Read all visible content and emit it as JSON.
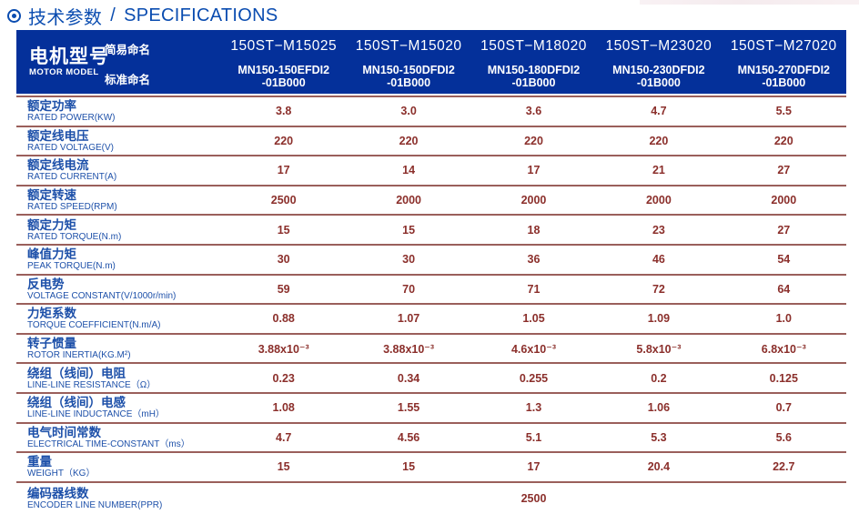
{
  "title": {
    "zh": "技术参数",
    "sep": "/",
    "en": "SPECIFICATIONS"
  },
  "colors": {
    "title_blue": "#0a4cb0",
    "header_bg": "#04309a",
    "header_text": "#ffffff",
    "label_blue": "#1d50a9",
    "value_red": "#8b2f2b",
    "line_red": "#9a5f5b",
    "page_bg": "#ffffff"
  },
  "table": {
    "header": {
      "model_label_zh": "电机型号",
      "model_label_en": "MOTOR MODEL",
      "simple_name_label": "简易命名",
      "standard_name_label": "标准命名",
      "models": [
        {
          "simple": "150ST−M15025",
          "standard_line1": "MN150-150EFDI2",
          "standard_line2": "-01B000"
        },
        {
          "simple": "150ST−M15020",
          "standard_line1": "MN150-150DFDI2",
          "standard_line2": "-01B000"
        },
        {
          "simple": "150ST−M18020",
          "standard_line1": "MN150-180DFDI2",
          "standard_line2": "-01B000"
        },
        {
          "simple": "150ST−M23020",
          "standard_line1": "MN150-230DFDI2",
          "standard_line2": "-01B000"
        },
        {
          "simple": "150ST−M27020",
          "standard_line1": "MN150-270DFDI2",
          "standard_line2": "-01B000"
        }
      ]
    },
    "rows": [
      {
        "zh": "额定功率",
        "en": "RATED POWER(KW)",
        "values": [
          "3.8",
          "3.0",
          "3.6",
          "4.7",
          "5.5"
        ]
      },
      {
        "zh": "额定线电压",
        "en": "RATED VOLTAGE(V)",
        "values": [
          "220",
          "220",
          "220",
          "220",
          "220"
        ]
      },
      {
        "zh": "额定线电流",
        "en": "RATED CURRENT(A)",
        "values": [
          "17",
          "14",
          "17",
          "21",
          "27"
        ]
      },
      {
        "zh": "额定转速",
        "en": "RATED SPEED(RPM)",
        "values": [
          "2500",
          "2000",
          "2000",
          "2000",
          "2000"
        ]
      },
      {
        "zh": "额定力矩",
        "en": "RATED TORQUE(N.m)",
        "values": [
          "15",
          "15",
          "18",
          "23",
          "27"
        ]
      },
      {
        "zh": "峰值力矩",
        "en": "PEAK TORQUE(N.m)",
        "values": [
          "30",
          "30",
          "36",
          "46",
          "54"
        ]
      },
      {
        "zh": "反电势",
        "en": "VOLTAGE CONSTANT(V/1000r/min)",
        "values": [
          "59",
          "70",
          "71",
          "72",
          "64"
        ]
      },
      {
        "zh": "力矩系数",
        "en": "TORQUE COEFFICIENT(N.m/A)",
        "values": [
          "0.88",
          "1.07",
          "1.05",
          "1.09",
          "1.0"
        ]
      },
      {
        "zh": "转子惯量",
        "en": "ROTOR INERTIA(KG.M²)",
        "values": [
          "3.88x10⁻³",
          "3.88x10⁻³",
          "4.6x10⁻³",
          "5.8x10⁻³",
          "6.8x10⁻³"
        ]
      },
      {
        "zh": "绕组（线间）电阻",
        "en": "LINE-LINE RESISTANCE（Ω）",
        "values": [
          "0.23",
          "0.34",
          "0.255",
          "0.2",
          "0.125"
        ]
      },
      {
        "zh": "绕组（线间）电感",
        "en": "LINE-LINE INDUCTANCE（mH）",
        "values": [
          "1.08",
          "1.55",
          "1.3",
          "1.06",
          "0.7"
        ]
      },
      {
        "zh": "电气时间常数",
        "en": "ELECTRICAL TIME-CONSTANT（ms）",
        "values": [
          "4.7",
          "4.56",
          "5.1",
          "5.3",
          "5.6"
        ]
      },
      {
        "zh": "重量",
        "en": "WEIGHT（KG）",
        "values": [
          "15",
          "15",
          "17",
          "20.4",
          "22.7"
        ]
      }
    ],
    "encoder_row": {
      "zh": "编码器线数",
      "en": "ENCODER LINE NUMBER(PPR)",
      "value": "2500"
    }
  }
}
